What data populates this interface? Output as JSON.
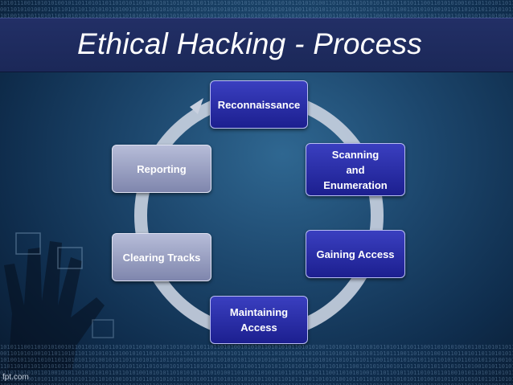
{
  "slide": {
    "title": "Ethical Hacking - Process",
    "footer_credit": "fpt.com"
  },
  "diagram": {
    "type": "cycle",
    "steps": [
      {
        "label": "Reconnaissance",
        "style": "blue"
      },
      {
        "label": "Scanning\nand\nEnumeration",
        "style": "blue"
      },
      {
        "label": "Gaining Access",
        "style": "blue"
      },
      {
        "label": "Maintaining\nAccess",
        "style": "blue"
      },
      {
        "label": "Clearing Tracks",
        "style": "grey"
      },
      {
        "label": "Reporting",
        "style": "grey"
      }
    ]
  },
  "decor": {
    "binary_text": "1010111001101010100101101101011011010101101001010110101010101101101010010101011010101011010101001101010110101010110101"
  },
  "colors": {
    "title_band": "#1f2b60",
    "ring": "#c9d1e0",
    "step_blue": "#252aa8",
    "step_grey": "#9aa0c4"
  }
}
